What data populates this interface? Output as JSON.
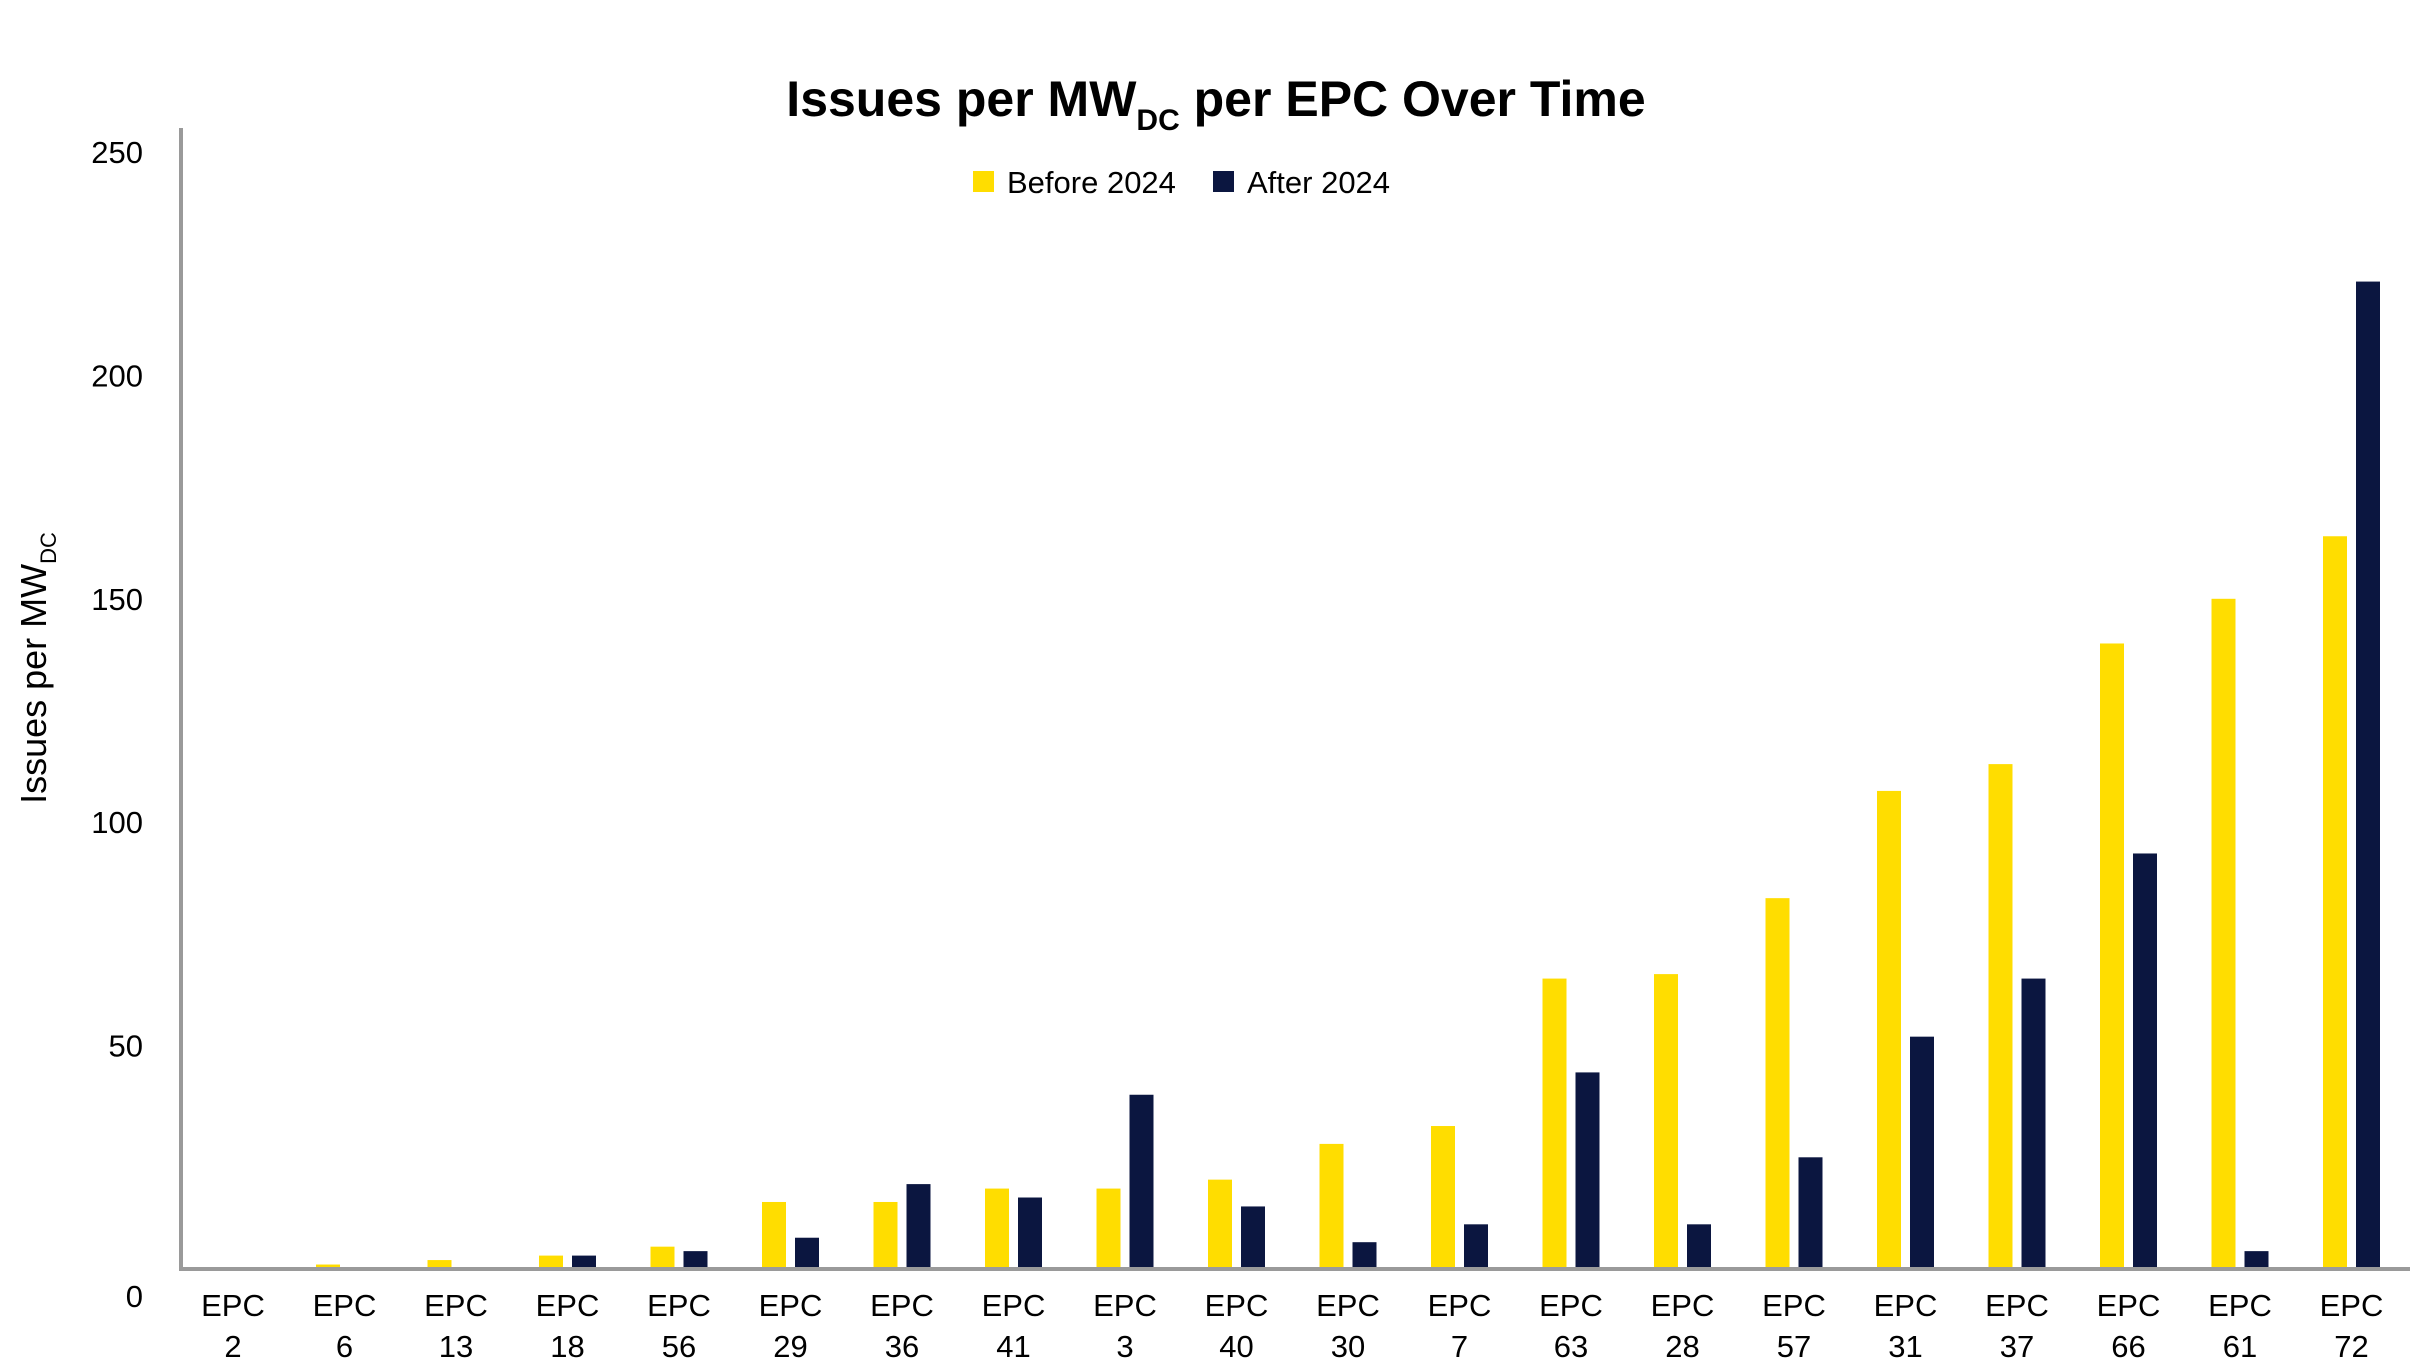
{
  "chart_data": {
    "type": "bar",
    "title": {
      "main": "Issues per MW",
      "sub": "DC",
      "rest": " per EPC Over Time"
    },
    "ylabel": {
      "main": "Issues per MW",
      "sub": "DC"
    },
    "xlabel": "",
    "ylim": [
      0,
      250
    ],
    "yticks": [
      0,
      50,
      100,
      150,
      200,
      250
    ],
    "grid": false,
    "legend_position": "top-center",
    "categories": [
      [
        "EPC",
        "2"
      ],
      [
        "EPC",
        "6"
      ],
      [
        "EPC",
        "13"
      ],
      [
        "EPC",
        "18"
      ],
      [
        "EPC",
        "56"
      ],
      [
        "EPC",
        "29"
      ],
      [
        "EPC",
        "36"
      ],
      [
        "EPC",
        "41"
      ],
      [
        "EPC",
        "3"
      ],
      [
        "EPC",
        "40"
      ],
      [
        "EPC",
        "30"
      ],
      [
        "EPC",
        "7"
      ],
      [
        "EPC",
        "63"
      ],
      [
        "EPC",
        "28"
      ],
      [
        "EPC",
        "57"
      ],
      [
        "EPC",
        "31"
      ],
      [
        "EPC",
        "37"
      ],
      [
        "EPC",
        "66"
      ],
      [
        "EPC",
        "61"
      ],
      [
        "EPC",
        "72"
      ]
    ],
    "series": [
      {
        "name": "Before 2024",
        "color": "#FFDD00",
        "values": [
          0.3,
          1,
          2,
          3,
          5,
          15,
          15,
          18,
          18,
          20,
          28,
          32,
          65,
          66,
          83,
          107,
          113,
          140,
          150,
          164
        ]
      },
      {
        "name": "After 2024",
        "color": "#0B1640",
        "values": [
          0.2,
          0.3,
          0.3,
          3,
          4,
          7,
          19,
          16,
          39,
          14,
          6,
          10,
          44,
          10,
          25,
          52,
          65,
          93,
          4,
          221
        ]
      }
    ]
  }
}
